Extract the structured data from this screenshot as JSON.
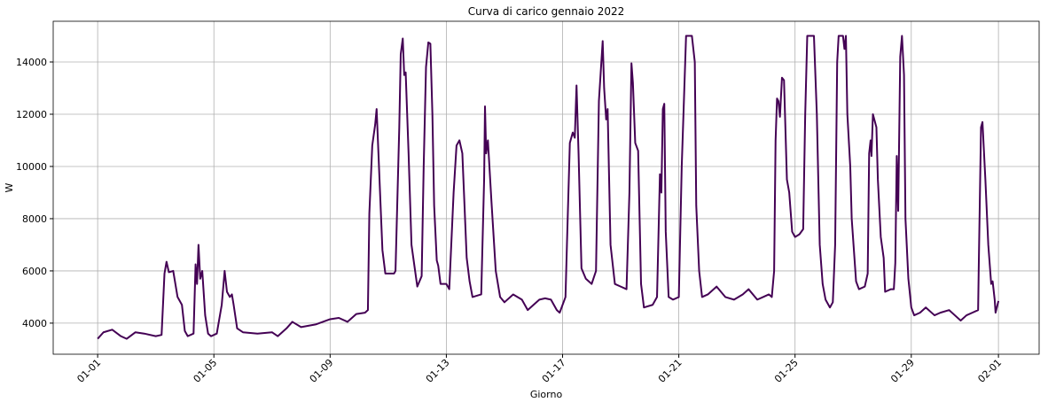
{
  "chart_data": {
    "type": "line",
    "title": "Curva di carico gennaio 2022",
    "xlabel": "Giorno",
    "ylabel": "W",
    "color": "#440154",
    "grid": true,
    "xlim": [
      -1.53,
      32.4
    ],
    "ylim": [
      2810,
      15560
    ],
    "xticks": [
      {
        "value": 0,
        "label": "01-01"
      },
      {
        "value": 4,
        "label": "01-05"
      },
      {
        "value": 8,
        "label": "01-09"
      },
      {
        "value": 12,
        "label": "01-13"
      },
      {
        "value": 16,
        "label": "01-17"
      },
      {
        "value": 20,
        "label": "01-21"
      },
      {
        "value": 24,
        "label": "01-25"
      },
      {
        "value": 28,
        "label": "01-29"
      },
      {
        "value": 31,
        "label": "02-01"
      }
    ],
    "yticks": [
      4000,
      6000,
      8000,
      10000,
      12000,
      14000
    ],
    "x": [
      0,
      0.2,
      0.5,
      0.8,
      1,
      1.3,
      1.6,
      2,
      2.2,
      2.3,
      2.37,
      2.45,
      2.6,
      2.75,
      2.9,
      3.0,
      3.1,
      3.3,
      3.37,
      3.42,
      3.47,
      3.53,
      3.6,
      3.7,
      3.8,
      3.9,
      4.0,
      4.1,
      4.27,
      4.37,
      4.45,
      4.55,
      4.62,
      4.68,
      4.8,
      5.0,
      5.5,
      6.0,
      6.2,
      6.5,
      6.7,
      7.0,
      7.5,
      8.0,
      8.3,
      8.6,
      8.9,
      9.2,
      9.3,
      9.35,
      9.45,
      9.55,
      9.6,
      9.7,
      9.8,
      9.9,
      10.2,
      10.25,
      10.38,
      10.43,
      10.5,
      10.55,
      10.6,
      10.7,
      10.8,
      10.95,
      11.0,
      11.15,
      11.22,
      11.3,
      11.38,
      11.45,
      11.52,
      11.58,
      11.67,
      11.72,
      11.8,
      12.0,
      12.1,
      12.25,
      12.35,
      12.45,
      12.55,
      12.7,
      12.8,
      12.9,
      13.2,
      13.25,
      13.3,
      13.33,
      13.37,
      13.43,
      13.55,
      13.7,
      13.85,
      14.0,
      14.3,
      14.6,
      14.8,
      15.2,
      15.4,
      15.6,
      15.8,
      15.9,
      16.1,
      16.15,
      16.25,
      16.35,
      16.42,
      16.48,
      16.55,
      16.65,
      16.8,
      17.0,
      17.15,
      17.25,
      17.38,
      17.43,
      17.5,
      17.55,
      17.65,
      17.8,
      18.0,
      18.2,
      18.3,
      18.37,
      18.42,
      18.5,
      18.6,
      18.7,
      18.8,
      19.1,
      19.25,
      19.35,
      19.4,
      19.45,
      19.5,
      19.55,
      19.65,
      19.8,
      20.0,
      20.1,
      20.25,
      20.45,
      20.55,
      20.6,
      20.7,
      20.8,
      21.0,
      21.3,
      21.6,
      21.9,
      22.2,
      22.4,
      22.7,
      22.9,
      23.1,
      23.2,
      23.28,
      23.33,
      23.38,
      23.43,
      23.48,
      23.55,
      23.62,
      23.72,
      23.8,
      23.9,
      24.0,
      24.15,
      24.28,
      24.35,
      24.42,
      24.65,
      24.75,
      24.85,
      24.95,
      25.05,
      25.2,
      25.3,
      25.38,
      25.45,
      25.5,
      25.65,
      25.7,
      25.75,
      25.8,
      25.9,
      25.95,
      26.1,
      26.2,
      26.4,
      26.5,
      26.55,
      26.6,
      26.63,
      26.68,
      26.8,
      26.85,
      26.95,
      27.05,
      27.1,
      27.3,
      27.4,
      27.45,
      27.5,
      27.55,
      27.62,
      27.68,
      27.75,
      27.8,
      27.9,
      28.0,
      28.1,
      28.3,
      28.5,
      28.8,
      29.0,
      29.3,
      29.5,
      29.7,
      29.9,
      30.1,
      30.3,
      30.32,
      30.4,
      30.45,
      30.55,
      30.65,
      30.75,
      30.8,
      30.87,
      30.9,
      31.0
    ],
    "values": [
      3400,
      3650,
      3750,
      3500,
      3400,
      3650,
      3600,
      3500,
      3550,
      5900,
      6350,
      5950,
      6000,
      5000,
      4700,
      3700,
      3500,
      3600,
      6250,
      5500,
      7000,
      5700,
      6000,
      4300,
      3600,
      3500,
      3550,
      3600,
      4700,
      6000,
      5200,
      5000,
      5100,
      4700,
      3800,
      3650,
      3600,
      3650,
      3500,
      3800,
      4050,
      3850,
      3950,
      4150,
      4200,
      4050,
      4350,
      4400,
      4500,
      8200,
      10800,
      11600,
      12200,
      9500,
      6800,
      5900,
      5900,
      6000,
      11500,
      14300,
      14900,
      13500,
      13600,
      10500,
      7000,
      5800,
      5400,
      5800,
      10000,
      13800,
      14750,
      14700,
      12000,
      8500,
      6400,
      6200,
      5500,
      5500,
      5300,
      9000,
      10800,
      11000,
      10500,
      6500,
      5600,
      5000,
      5100,
      7300,
      9500,
      12300,
      10500,
      11000,
      8700,
      6000,
      5000,
      4800,
      5100,
      4900,
      4500,
      4900,
      4950,
      4900,
      4500,
      4400,
      5000,
      7000,
      10900,
      11300,
      11100,
      13100,
      10500,
      6100,
      5700,
      5500,
      6000,
      12500,
      14800,
      13000,
      11800,
      12200,
      7000,
      5500,
      5400,
      5300,
      9000,
      13950,
      13200,
      10900,
      10600,
      5500,
      4600,
      4700,
      5000,
      9700,
      9000,
      12200,
      12400,
      7500,
      5000,
      4900,
      5000,
      10000,
      15000,
      15000,
      14000,
      8500,
      6000,
      5000,
      5100,
      5400,
      5000,
      4900,
      5100,
      5300,
      4900,
      5000,
      5100,
      5000,
      6000,
      11000,
      12600,
      12500,
      11900,
      13400,
      13300,
      9500,
      9000,
      7500,
      7300,
      7400,
      7600,
      12000,
      15000,
      15000,
      12000,
      7000,
      5500,
      4900,
      4600,
      4800,
      7000,
      14000,
      15000,
      15000,
      14500,
      15000,
      12000,
      10000,
      8000,
      5600,
      5300,
      5400,
      5900,
      10500,
      11000,
      10400,
      12000,
      11500,
      9500,
      7300,
      6500,
      5200,
      5300,
      5300,
      6300,
      10400,
      8300,
      14200,
      15000,
      13500,
      8000,
      5700,
      4600,
      4300,
      4400,
      4600,
      4300,
      4400,
      4500,
      4300,
      4100,
      4300,
      4400,
      4500,
      6000,
      11500,
      11700,
      9500,
      7000,
      5500,
      5600,
      4900,
      4400,
      4850
    ]
  }
}
